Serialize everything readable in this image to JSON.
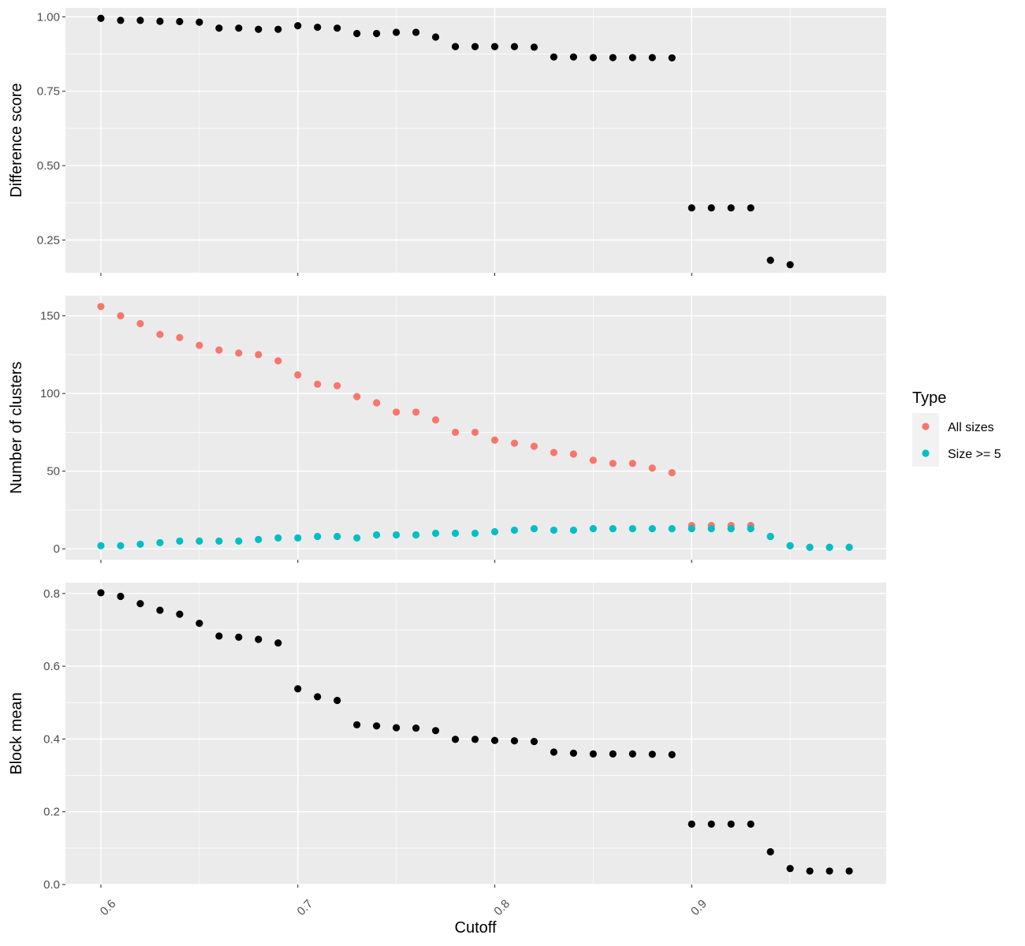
{
  "chart_data": [
    {
      "type": "scatter",
      "ylabel": "Difference score",
      "ylim": [
        0.14,
        1.03
      ],
      "yticks": [
        0.25,
        0.5,
        0.75,
        1.0
      ],
      "ytick_labels": [
        "0.25",
        "0.50",
        "0.75",
        "1.00"
      ],
      "series": [
        {
          "color": "#000000",
          "points": [
            [
              0.6,
              0.995
            ],
            [
              0.61,
              0.988
            ],
            [
              0.62,
              0.988
            ],
            [
              0.63,
              0.985
            ],
            [
              0.64,
              0.984
            ],
            [
              0.65,
              0.982
            ],
            [
              0.66,
              0.962
            ],
            [
              0.67,
              0.962
            ],
            [
              0.68,
              0.958
            ],
            [
              0.69,
              0.958
            ],
            [
              0.7,
              0.97
            ],
            [
              0.71,
              0.965
            ],
            [
              0.72,
              0.962
            ],
            [
              0.73,
              0.944
            ],
            [
              0.74,
              0.944
            ],
            [
              0.75,
              0.948
            ],
            [
              0.76,
              0.948
            ],
            [
              0.77,
              0.932
            ],
            [
              0.78,
              0.9
            ],
            [
              0.79,
              0.9
            ],
            [
              0.8,
              0.9
            ],
            [
              0.81,
              0.9
            ],
            [
              0.82,
              0.898
            ],
            [
              0.83,
              0.865
            ],
            [
              0.84,
              0.865
            ],
            [
              0.85,
              0.863
            ],
            [
              0.86,
              0.863
            ],
            [
              0.87,
              0.863
            ],
            [
              0.88,
              0.863
            ],
            [
              0.89,
              0.862
            ],
            [
              0.9,
              0.358
            ],
            [
              0.91,
              0.358
            ],
            [
              0.92,
              0.358
            ],
            [
              0.93,
              0.358
            ],
            [
              0.94,
              0.182
            ],
            [
              0.95,
              0.167
            ]
          ]
        }
      ]
    },
    {
      "type": "scatter",
      "ylabel": "Number of clusters",
      "ylim": [
        -7,
        163
      ],
      "yticks": [
        0,
        50,
        100,
        150
      ],
      "ytick_labels": [
        "0",
        "50",
        "100",
        "150"
      ],
      "legend": {
        "title": "Type",
        "position": "right",
        "entries": [
          {
            "label": "All sizes",
            "color": "#F8766D"
          },
          {
            "label": "Size >= 5",
            "color": "#00BFC4"
          }
        ]
      },
      "series": [
        {
          "name": "All sizes",
          "color": "#F8766D",
          "points": [
            [
              0.6,
              156
            ],
            [
              0.61,
              150
            ],
            [
              0.62,
              145
            ],
            [
              0.63,
              138
            ],
            [
              0.64,
              136
            ],
            [
              0.65,
              131
            ],
            [
              0.66,
              128
            ],
            [
              0.67,
              126
            ],
            [
              0.68,
              125
            ],
            [
              0.69,
              121
            ],
            [
              0.7,
              112
            ],
            [
              0.71,
              106
            ],
            [
              0.72,
              105
            ],
            [
              0.73,
              98
            ],
            [
              0.74,
              94
            ],
            [
              0.75,
              88
            ],
            [
              0.76,
              88
            ],
            [
              0.77,
              83
            ],
            [
              0.78,
              75
            ],
            [
              0.79,
              75
            ],
            [
              0.8,
              70
            ],
            [
              0.81,
              68
            ],
            [
              0.82,
              66
            ],
            [
              0.83,
              62
            ],
            [
              0.84,
              61
            ],
            [
              0.85,
              57
            ],
            [
              0.86,
              55
            ],
            [
              0.87,
              55
            ],
            [
              0.88,
              52
            ],
            [
              0.89,
              49
            ],
            [
              0.9,
              15
            ],
            [
              0.91,
              15
            ],
            [
              0.92,
              15
            ],
            [
              0.93,
              15
            ],
            [
              0.94,
              8
            ],
            [
              0.95,
              2
            ],
            [
              0.96,
              1
            ],
            [
              0.97,
              1
            ],
            [
              0.98,
              1
            ]
          ]
        },
        {
          "name": "Size >= 5",
          "color": "#00BFC4",
          "points": [
            [
              0.6,
              2
            ],
            [
              0.61,
              2
            ],
            [
              0.62,
              3
            ],
            [
              0.63,
              4
            ],
            [
              0.64,
              5
            ],
            [
              0.65,
              5
            ],
            [
              0.66,
              5
            ],
            [
              0.67,
              5
            ],
            [
              0.68,
              6
            ],
            [
              0.69,
              7
            ],
            [
              0.7,
              7
            ],
            [
              0.71,
              8
            ],
            [
              0.72,
              8
            ],
            [
              0.73,
              7
            ],
            [
              0.74,
              9
            ],
            [
              0.75,
              9
            ],
            [
              0.76,
              9
            ],
            [
              0.77,
              10
            ],
            [
              0.78,
              10
            ],
            [
              0.79,
              10
            ],
            [
              0.8,
              11
            ],
            [
              0.81,
              12
            ],
            [
              0.82,
              13
            ],
            [
              0.83,
              12
            ],
            [
              0.84,
              12
            ],
            [
              0.85,
              13
            ],
            [
              0.86,
              13
            ],
            [
              0.87,
              13
            ],
            [
              0.88,
              13
            ],
            [
              0.89,
              13
            ],
            [
              0.9,
              13
            ],
            [
              0.91,
              13
            ],
            [
              0.92,
              13
            ],
            [
              0.93,
              13
            ],
            [
              0.94,
              8
            ],
            [
              0.95,
              2
            ],
            [
              0.96,
              1
            ],
            [
              0.97,
              1
            ],
            [
              0.98,
              1
            ]
          ]
        }
      ]
    },
    {
      "type": "scatter",
      "ylabel": "Block mean",
      "ylim": [
        0.0,
        0.83
      ],
      "yticks": [
        0.0,
        0.2,
        0.4,
        0.6,
        0.8
      ],
      "ytick_labels": [
        "0.0",
        "0.2",
        "0.4",
        "0.6",
        "0.8"
      ],
      "series": [
        {
          "color": "#000000",
          "points": [
            [
              0.6,
              0.802
            ],
            [
              0.61,
              0.792
            ],
            [
              0.62,
              0.772
            ],
            [
              0.63,
              0.754
            ],
            [
              0.64,
              0.743
            ],
            [
              0.65,
              0.718
            ],
            [
              0.66,
              0.683
            ],
            [
              0.67,
              0.68
            ],
            [
              0.68,
              0.674
            ],
            [
              0.69,
              0.664
            ],
            [
              0.7,
              0.538
            ],
            [
              0.71,
              0.516
            ],
            [
              0.72,
              0.506
            ],
            [
              0.73,
              0.439
            ],
            [
              0.74,
              0.436
            ],
            [
              0.75,
              0.431
            ],
            [
              0.76,
              0.43
            ],
            [
              0.77,
              0.423
            ],
            [
              0.78,
              0.399
            ],
            [
              0.79,
              0.399
            ],
            [
              0.8,
              0.396
            ],
            [
              0.81,
              0.395
            ],
            [
              0.82,
              0.393
            ],
            [
              0.83,
              0.364
            ],
            [
              0.84,
              0.361
            ],
            [
              0.85,
              0.359
            ],
            [
              0.86,
              0.359
            ],
            [
              0.87,
              0.359
            ],
            [
              0.88,
              0.358
            ],
            [
              0.89,
              0.357
            ],
            [
              0.9,
              0.166
            ],
            [
              0.91,
              0.166
            ],
            [
              0.92,
              0.166
            ],
            [
              0.93,
              0.166
            ],
            [
              0.94,
              0.09
            ],
            [
              0.95,
              0.044
            ],
            [
              0.96,
              0.037
            ],
            [
              0.97,
              0.037
            ],
            [
              0.98,
              0.037
            ]
          ]
        }
      ]
    }
  ],
  "x_axis": {
    "label": "Cutoff",
    "xlim": [
      0.582,
      0.9988
    ],
    "ticks": [
      0.6,
      0.7,
      0.8,
      0.9
    ],
    "tick_labels": [
      "0.6",
      "0.7",
      "0.8",
      "0.9"
    ]
  }
}
